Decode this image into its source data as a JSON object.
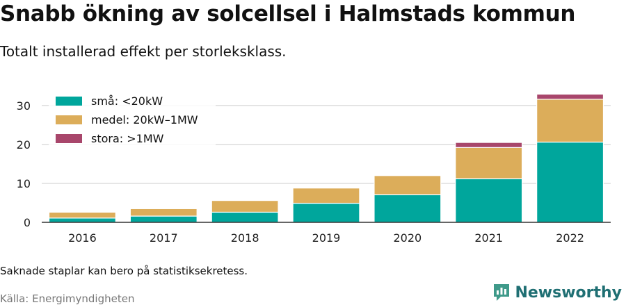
{
  "header": {
    "title": "Snabb ökning av solcellsel i Halmstads kommun",
    "subtitle": "Totalt installerad effekt per storleksklass."
  },
  "footer": {
    "note": "Saknade staplar kan bero på statistiksekretess.",
    "source": "Källa: Energimyndigheten",
    "brand": "Newsworthy"
  },
  "chart_data": {
    "type": "bar",
    "stacked": true,
    "title": "Snabb ökning av solcellsel i Halmstads kommun",
    "subtitle": "Totalt installerad effekt per storleksklass.",
    "xlabel": "",
    "ylabel": "",
    "categories": [
      "2016",
      "2017",
      "2018",
      "2019",
      "2020",
      "2021",
      "2022"
    ],
    "series": [
      {
        "name": "små: <20kW",
        "color": "#00a69c",
        "values": [
          1.1,
          1.6,
          2.6,
          4.9,
          7.1,
          11.2,
          20.6
        ]
      },
      {
        "name": "medel: 20kW–1MW",
        "color": "#dcad5a",
        "values": [
          1.5,
          1.9,
          3.0,
          3.9,
          4.9,
          8.0,
          11.0
        ]
      },
      {
        "name": "stora: >1MW",
        "color": "#a8466b",
        "values": [
          0,
          0,
          0,
          0,
          0,
          1.3,
          1.3
        ]
      }
    ],
    "yticks": [
      0,
      10,
      20,
      30
    ],
    "ylim": [
      0,
      33
    ],
    "grid": true,
    "legend_position": "top-left"
  }
}
